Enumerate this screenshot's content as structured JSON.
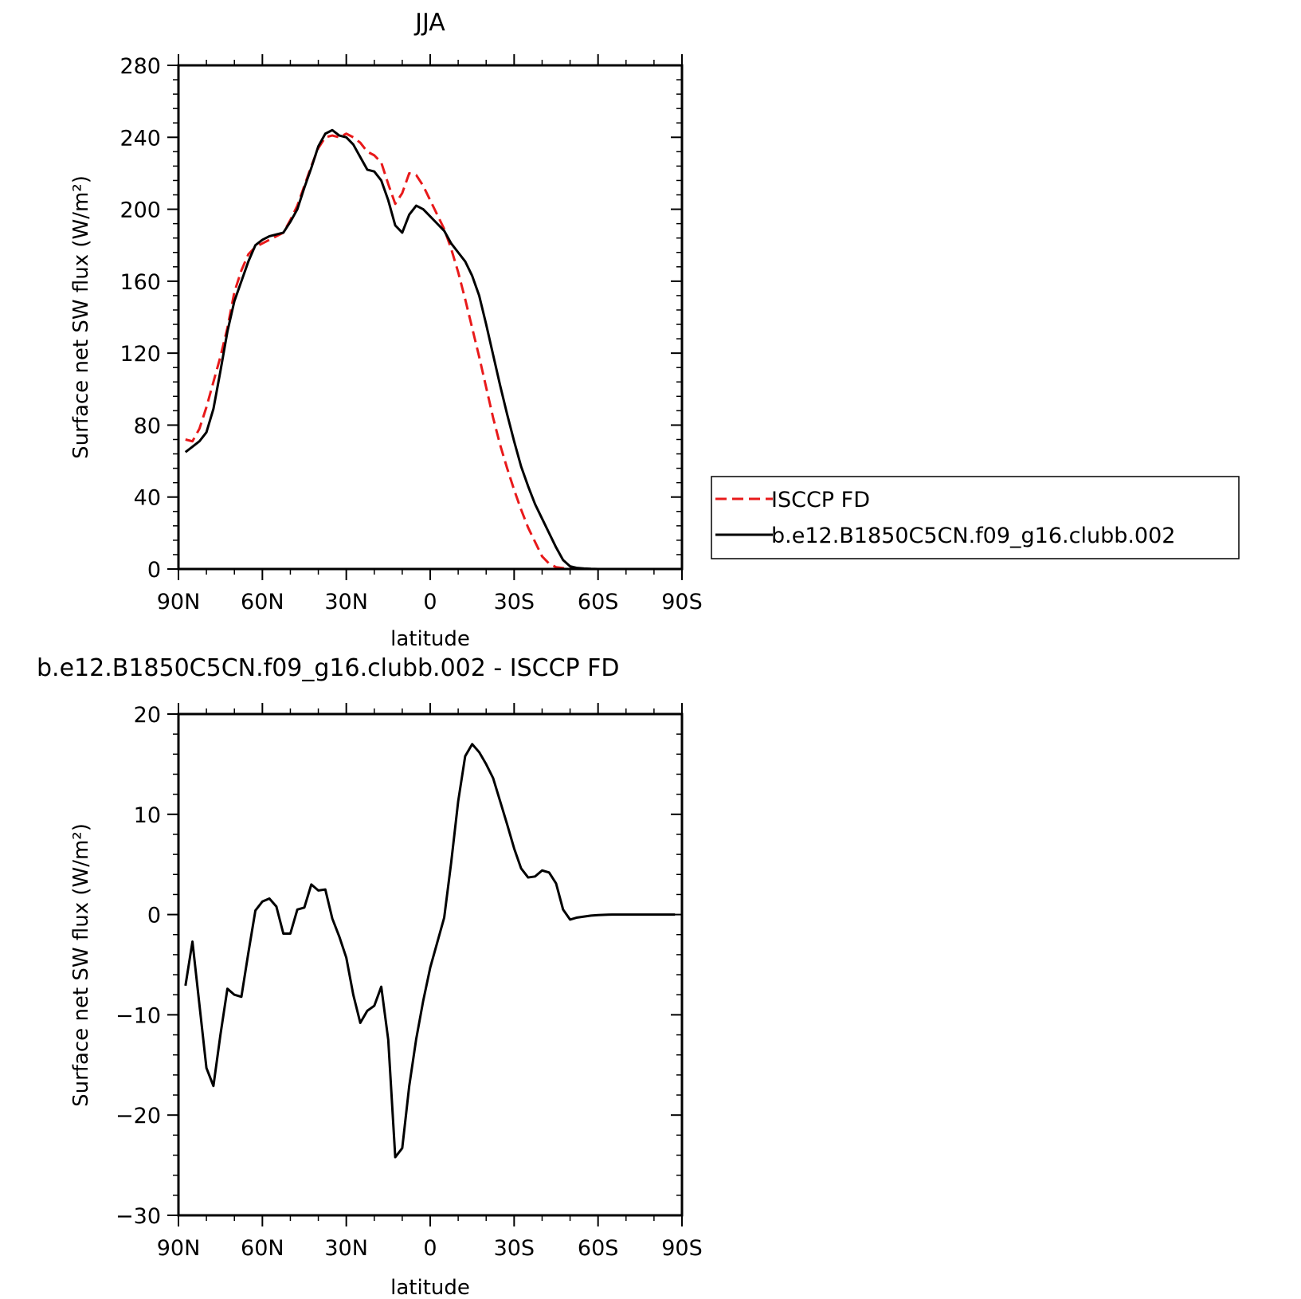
{
  "chart_data": [
    {
      "type": "line",
      "title": "JJA",
      "xlabel": "latitude",
      "ylabel": "Surface net SW flux (W/m²)",
      "xlim": [
        90,
        -90
      ],
      "ylim": [
        0,
        280
      ],
      "y_ticks": [
        0,
        40,
        80,
        120,
        160,
        200,
        240,
        280
      ],
      "x_ticks": [
        {
          "value": 90,
          "label": "90N"
        },
        {
          "value": 60,
          "label": "60N"
        },
        {
          "value": 30,
          "label": "30N"
        },
        {
          "value": 0,
          "label": "0"
        },
        {
          "value": -30,
          "label": "30S"
        },
        {
          "value": -60,
          "label": "60S"
        },
        {
          "value": -90,
          "label": "90S"
        }
      ],
      "legend": {
        "placement": "right",
        "entries": [
          "ISCCP FD",
          "b.e12.B1850C5CN.f09_g16.clubb.002"
        ]
      },
      "series": [
        {
          "name": "ISCCP FD",
          "color": "#e8191a",
          "style": "dashed",
          "x": [
            87.5,
            85,
            82.5,
            80,
            77.5,
            75,
            72.5,
            70,
            67.5,
            65,
            62.5,
            60,
            57.5,
            55,
            52.5,
            50,
            47.5,
            45,
            42.5,
            40,
            37.5,
            35,
            32.5,
            30,
            27.5,
            25,
            22.5,
            20,
            17.5,
            15,
            12.5,
            10,
            7.5,
            5,
            2.5,
            0,
            -2.5,
            -5,
            -7.5,
            -10,
            -12.5,
            -15,
            -17.5,
            -20,
            -22.5,
            -25,
            -27.5,
            -30,
            -32.5,
            -35,
            -37.5,
            -40,
            -42.5,
            -45,
            -47.5,
            -50,
            -52.5,
            -55,
            -57.5,
            -60,
            -62.5,
            -65,
            -67.5,
            -70,
            -72.5,
            -75,
            -77.5,
            -80,
            -82.5,
            -85,
            -87.5
          ],
          "y": [
            72,
            71,
            78,
            90,
            104,
            118,
            134,
            154,
            166,
            175,
            179,
            181,
            183,
            185,
            187,
            194,
            202,
            213,
            224,
            234,
            240,
            241,
            240,
            242,
            240,
            237,
            232,
            230,
            226,
            214,
            203,
            209,
            220,
            219,
            213,
            205,
            197,
            189,
            178,
            165,
            150,
            134,
            118,
            101,
            84,
            69,
            56,
            44,
            33,
            23,
            15,
            7,
            3,
            1,
            0.5,
            0.2,
            0.1,
            0,
            0,
            0,
            0,
            0,
            0,
            0,
            0,
            0,
            0,
            0,
            0,
            0,
            0
          ]
        },
        {
          "name": "b.e12.B1850C5CN.f09_g16.clubb.002",
          "color": "#000000",
          "style": "solid",
          "x": [
            87.5,
            85,
            82.5,
            80,
            77.5,
            75,
            72.5,
            70,
            67.5,
            65,
            62.5,
            60,
            57.5,
            55,
            52.5,
            50,
            47.5,
            45,
            42.5,
            40,
            37.5,
            35,
            32.5,
            30,
            27.5,
            25,
            22.5,
            20,
            17.5,
            15,
            12.5,
            10,
            7.5,
            5,
            2.5,
            0,
            -2.5,
            -5,
            -7.5,
            -10,
            -12.5,
            -15,
            -17.5,
            -20,
            -22.5,
            -25,
            -27.5,
            -30,
            -32.5,
            -35,
            -37.5,
            -40,
            -42.5,
            -45,
            -47.5,
            -50,
            -52.5,
            -55,
            -57.5,
            -60,
            -62.5,
            -65,
            -67.5,
            -70,
            -72.5,
            -75,
            -77.5,
            -80,
            -82.5,
            -85,
            -87.5
          ],
          "y": [
            65,
            68,
            71,
            76,
            89,
            110,
            132,
            149,
            160,
            171,
            180,
            183,
            185,
            186,
            187,
            193,
            200,
            212,
            223,
            235,
            242,
            244,
            241,
            240,
            236,
            229,
            222,
            221,
            216,
            205,
            191,
            187,
            197,
            202,
            200,
            196,
            192,
            188,
            181,
            176,
            171,
            163,
            152,
            136,
            119,
            102,
            86,
            71,
            57,
            46,
            36,
            28,
            20,
            12,
            5,
            1.5,
            0.6,
            0.3,
            0.1,
            0,
            0,
            0,
            0,
            0,
            0,
            0,
            0,
            0,
            0,
            0,
            0
          ]
        }
      ]
    },
    {
      "type": "line",
      "title": "b.e12.B1850C5CN.f09_g16.clubb.002 - ISCCP FD",
      "xlabel": "latitude",
      "ylabel": "Surface net SW flux (W/m²)",
      "xlim": [
        90,
        -90
      ],
      "ylim": [
        -30,
        20
      ],
      "y_ticks": [
        -30,
        -20,
        -10,
        0,
        10,
        20
      ],
      "y_tick_labels": [
        "−30",
        "−20",
        "−10",
        "0",
        "10",
        "20"
      ],
      "x_ticks": [
        {
          "value": 90,
          "label": "90N"
        },
        {
          "value": 60,
          "label": "60N"
        },
        {
          "value": 30,
          "label": "30N"
        },
        {
          "value": 0,
          "label": "0"
        },
        {
          "value": -30,
          "label": "30S"
        },
        {
          "value": -60,
          "label": "60S"
        },
        {
          "value": -90,
          "label": "90S"
        }
      ],
      "series": [
        {
          "color": "#000000",
          "style": "solid",
          "x": [
            87.5,
            85,
            82.5,
            80,
            77.5,
            75,
            72.5,
            70,
            67.5,
            65,
            62.5,
            60,
            57.5,
            55,
            52.5,
            50,
            47.5,
            45,
            42.5,
            40,
            37.5,
            35,
            32.5,
            30,
            27.5,
            25,
            22.5,
            20,
            17.5,
            15,
            12.5,
            10,
            7.5,
            5,
            2.5,
            0,
            -2.5,
            -5,
            -7.5,
            -10,
            -12.5,
            -15,
            -17.5,
            -20,
            -22.5,
            -25,
            -27.5,
            -30,
            -32.5,
            -35,
            -37.5,
            -40,
            -42.5,
            -45,
            -47.5,
            -50,
            -52.5,
            -55,
            -57.5,
            -60,
            -62.5,
            -65,
            -67.5,
            -70,
            -72.5,
            -75,
            -77.5,
            -80,
            -82.5,
            -85,
            -87.5
          ],
          "y": [
            -7.1,
            -2.7,
            -9.0,
            -15.3,
            -17.1,
            -12.0,
            -7.4,
            -8.0,
            -8.2,
            -3.8,
            0.4,
            1.3,
            1.6,
            0.8,
            -1.9,
            -1.9,
            0.5,
            0.7,
            3.0,
            2.4,
            2.5,
            -0.4,
            -2.2,
            -4.3,
            -8.0,
            -10.8,
            -9.6,
            -9.1,
            -7.2,
            -12.5,
            -24.2,
            -23.3,
            -17.1,
            -12.4,
            -8.6,
            -5.3,
            -2.8,
            -0.3,
            5.2,
            11.3,
            15.8,
            17.0,
            16.2,
            15.0,
            13.6,
            11.3,
            9.0,
            6.6,
            4.6,
            3.7,
            3.8,
            4.4,
            4.2,
            3.1,
            0.5,
            -0.5,
            -0.3,
            -0.2,
            -0.1,
            -0.05,
            -0.02,
            0,
            0,
            0,
            0,
            0,
            0,
            0,
            0,
            0,
            0
          ]
        }
      ]
    }
  ]
}
